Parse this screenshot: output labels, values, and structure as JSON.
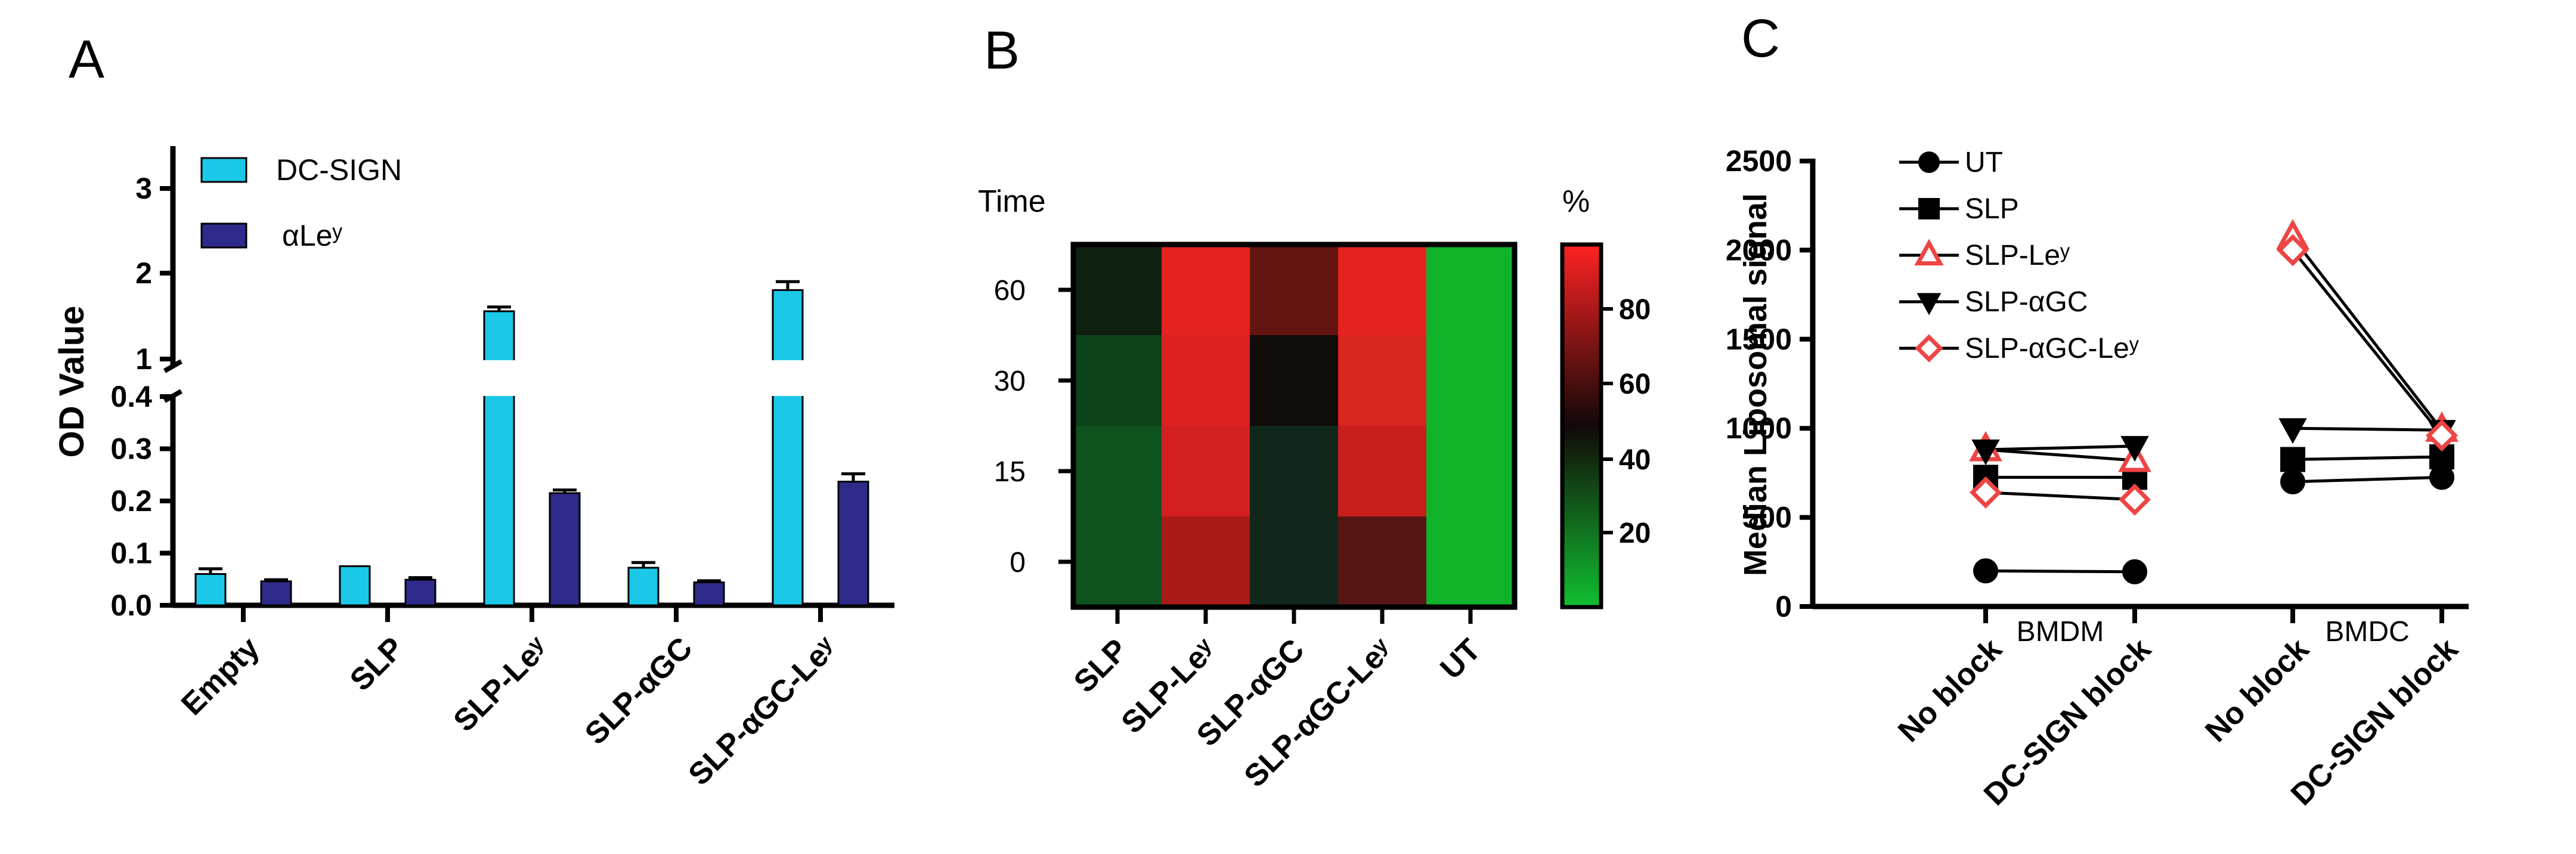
{
  "chart_data": [
    {
      "panel": "A",
      "type": "bar",
      "ylabel": "OD Value",
      "categories": [
        "Empty",
        "SLP",
        "SLP-Leʸ",
        "SLP-αGC",
        "SLP-αGC-Leʸ"
      ],
      "series": [
        {
          "name": "DC-SIGN",
          "color": "#1bc8e8",
          "values": [
            0.06,
            0.075,
            1.55,
            0.072,
            1.8
          ],
          "errors": [
            0.01,
            0.0,
            0.05,
            0.01,
            0.1
          ]
        },
        {
          "name": "αLeʸ",
          "color": "#2e2a8a",
          "values": [
            0.046,
            0.049,
            0.215,
            0.044,
            0.237
          ],
          "errors": [
            0.003,
            0.004,
            0.006,
            0.003,
            0.015
          ]
        }
      ],
      "axis_break": {
        "lower_range": [
          0,
          0.4
        ],
        "upper_range": [
          1,
          3.5
        ]
      },
      "lower_ticks": [
        "0.0",
        "0.1",
        "0.2",
        "0.3",
        "0.4"
      ],
      "upper_ticks": [
        "1",
        "2",
        "3"
      ],
      "legend": "top-left"
    },
    {
      "panel": "B",
      "type": "heatmap",
      "ylabel": "Time",
      "colorbar_label": "%",
      "columns": [
        "SLP",
        "SLP-Leʸ",
        "SLP-αGC",
        "SLP-αGC-Leʸ",
        "UT"
      ],
      "rows": [
        "60",
        "30",
        "15",
        "0"
      ],
      "colorbar_ticks": [
        "20",
        "40",
        "60",
        "80"
      ],
      "cell_colors": [
        [
          "#0f200f",
          "#e42220",
          "#621410",
          "#e52320",
          "#10b22a"
        ],
        [
          "#0c4218",
          "#dc2220",
          "#0f0c09",
          "#d82520",
          "#10b22a"
        ],
        [
          "#0e531e",
          "#d22020",
          "#12271b",
          "#c81f1d",
          "#10b22a"
        ],
        [
          "#0e531e",
          "#a81a18",
          "#12271b",
          "#541514",
          "#10b22a"
        ]
      ]
    },
    {
      "panel": "C",
      "type": "line",
      "ylabel": "Median Liposomal signal",
      "ylim": [
        0,
        2500
      ],
      "yticks": [
        "0",
        "500",
        "1000",
        "1500",
        "2000",
        "2500"
      ],
      "x_labels": [
        "No block",
        "DC-SIGN block",
        "No block",
        "DC-SIGN block"
      ],
      "groups": [
        "BMDM",
        "BMDC"
      ],
      "series": [
        {
          "name": "UT",
          "marker": "circle",
          "values": [
            200,
            195,
            700,
            725
          ]
        },
        {
          "name": "SLP",
          "marker": "square",
          "values": [
            725,
            725,
            825,
            840
          ]
        },
        {
          "name": "SLP-Leʸ",
          "marker": "triangle-up",
          "values": [
            880,
            820,
            2070,
            990
          ]
        },
        {
          "name": "SLP-αGC",
          "marker": "triangle-down",
          "values": [
            880,
            900,
            1000,
            990
          ]
        },
        {
          "name": "SLP-αGC-Leʸ",
          "marker": "diamond",
          "values": [
            640,
            600,
            2000,
            960
          ]
        }
      ],
      "legend": "top-left"
    }
  ],
  "panels": {
    "a": "A",
    "b": "B",
    "c": "C"
  }
}
